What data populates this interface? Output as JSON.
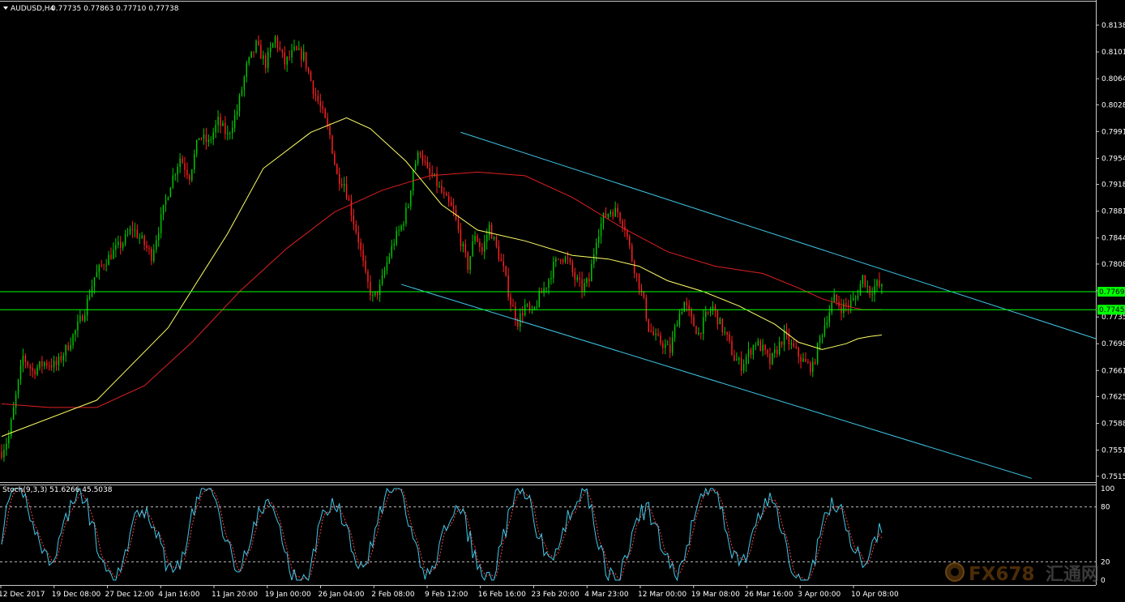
{
  "header": {
    "symbol": "AUDUSD,H4",
    "ohlc": "0.77735 0.77863 0.77710 0.77738"
  },
  "stoch_header": "Stoch(9,3,3) 51.6266 45.5038",
  "watermark": {
    "brand": "FX678",
    "cn": "汇通网"
  },
  "colors": {
    "background": "#000000",
    "bull": "#00c800",
    "bear": "#ff2020",
    "ma_fast": "#ffff66",
    "ma_slow": "#e02020",
    "channel": "#3fc8e8",
    "support": "#00ff00",
    "stoch_main": "#3fc8e8",
    "stoch_signal": "#ff4040"
  },
  "chart_data": {
    "type": "candlestick",
    "instrument": "AUDUSD",
    "timeframe": "H4",
    "ylim": [
      0.75125,
      0.8138
    ],
    "y_ticks": [
      "0.81380",
      "0.81010",
      "0.80640",
      "0.80280",
      "0.79910",
      "0.79540",
      "0.79180",
      "0.78810",
      "0.78440",
      "0.78080",
      "0.77710",
      "0.77350",
      "0.76980",
      "0.76610",
      "0.76250",
      "0.75880",
      "0.75510",
      "0.75150"
    ],
    "current_price_labels": [
      {
        "label": "0.77698",
        "value": 0.77698
      },
      {
        "label": "0.77450",
        "value": 0.7745
      }
    ],
    "x_ticks": [
      "12 Dec 2017",
      "19 Dec 08:00",
      "27 Dec 12:00",
      "4 Jan 16:00",
      "11 Jan 20:00",
      "19 Jan 00:00",
      "26 Jan 04:00",
      "2 Feb 08:00",
      "9 Feb 12:00",
      "16 Feb 16:00",
      "23 Feb 20:00",
      "4 Mar 23:00",
      "12 Mar 00:00",
      "19 Mar 08:00",
      "26 Mar 16:00",
      "3 Apr 00:00",
      "10 Apr 08:00"
    ],
    "close_path": [
      [
        0,
        0.7549
      ],
      [
        3,
        0.757
      ],
      [
        6,
        0.7625
      ],
      [
        9,
        0.768
      ],
      [
        13,
        0.766
      ],
      [
        18,
        0.7672
      ],
      [
        23,
        0.7668
      ],
      [
        27,
        0.769
      ],
      [
        31,
        0.7715
      ],
      [
        35,
        0.7745
      ],
      [
        39,
        0.779
      ],
      [
        43,
        0.781
      ],
      [
        47,
        0.7825
      ],
      [
        51,
        0.7838
      ],
      [
        55,
        0.7858
      ],
      [
        59,
        0.784
      ],
      [
        63,
        0.782
      ],
      [
        67,
        0.787
      ],
      [
        71,
        0.792
      ],
      [
        75,
        0.7955
      ],
      [
        79,
        0.793
      ],
      [
        83,
        0.7985
      ],
      [
        87,
        0.7975
      ],
      [
        91,
        0.8005
      ],
      [
        95,
        0.7985
      ],
      [
        99,
        0.802
      ],
      [
        103,
        0.808
      ],
      [
        107,
        0.811
      ],
      [
        111,
        0.8085
      ],
      [
        115,
        0.812
      ],
      [
        119,
        0.8085
      ],
      [
        123,
        0.8102
      ],
      [
        127,
        0.8095
      ],
      [
        131,
        0.805
      ],
      [
        135,
        0.8015
      ],
      [
        138,
        0.7985
      ],
      [
        141,
        0.793
      ],
      [
        144,
        0.792
      ],
      [
        147,
        0.788
      ],
      [
        150,
        0.7842
      ],
      [
        153,
        0.779
      ],
      [
        156,
        0.776
      ],
      [
        159,
        0.7775
      ],
      [
        162,
        0.781
      ],
      [
        165,
        0.784
      ],
      [
        168,
        0.786
      ],
      [
        171,
        0.789
      ],
      [
        173,
        0.794
      ],
      [
        176,
        0.7965
      ],
      [
        179,
        0.7935
      ],
      [
        182,
        0.7925
      ],
      [
        186,
        0.79
      ],
      [
        190,
        0.788
      ],
      [
        193,
        0.784
      ],
      [
        196,
        0.7805
      ],
      [
        199,
        0.785
      ],
      [
        202,
        0.7825
      ],
      [
        205,
        0.786
      ],
      [
        208,
        0.783
      ],
      [
        211,
        0.78
      ],
      [
        214,
        0.7755
      ],
      [
        217,
        0.7728
      ],
      [
        220,
        0.775
      ],
      [
        223,
        0.7738
      ],
      [
        226,
        0.7762
      ],
      [
        229,
        0.778
      ],
      [
        232,
        0.7805
      ],
      [
        235,
        0.782
      ],
      [
        238,
        0.7812
      ],
      [
        241,
        0.7788
      ],
      [
        244,
        0.7775
      ],
      [
        247,
        0.7785
      ],
      [
        250,
        0.7845
      ],
      [
        253,
        0.7872
      ],
      [
        256,
        0.7882
      ],
      [
        259,
        0.788
      ],
      [
        262,
        0.786
      ],
      [
        265,
        0.7815
      ],
      [
        268,
        0.778
      ],
      [
        270,
        0.7755
      ],
      [
        272,
        0.772
      ],
      [
        275,
        0.7705
      ],
      [
        278,
        0.7698
      ],
      [
        281,
        0.7688
      ],
      [
        284,
        0.7732
      ],
      [
        287,
        0.7755
      ],
      [
        290,
        0.773
      ],
      [
        293,
        0.7712
      ],
      [
        296,
        0.7735
      ],
      [
        299,
        0.7748
      ],
      [
        302,
        0.7725
      ],
      [
        305,
        0.7705
      ],
      [
        308,
        0.7678
      ],
      [
        311,
        0.7668
      ],
      [
        314,
        0.7685
      ],
      [
        317,
        0.77
      ],
      [
        320,
        0.769
      ],
      [
        323,
        0.7672
      ],
      [
        326,
        0.769
      ],
      [
        329,
        0.771
      ],
      [
        332,
        0.7695
      ],
      [
        335,
        0.7682
      ],
      [
        338,
        0.767
      ],
      [
        341,
        0.7665
      ],
      [
        344,
        0.7705
      ],
      [
        347,
        0.7735
      ],
      [
        350,
        0.776
      ],
      [
        353,
        0.7748
      ],
      [
        356,
        0.7752
      ],
      [
        359,
        0.776
      ],
      [
        362,
        0.779
      ],
      [
        365,
        0.777
      ],
      [
        368,
        0.778
      ],
      [
        370,
        0.7774
      ]
    ],
    "ma_fast": [
      [
        0,
        0.757
      ],
      [
        40,
        0.762
      ],
      [
        70,
        0.772
      ],
      [
        95,
        0.785
      ],
      [
        110,
        0.794
      ],
      [
        130,
        0.799
      ],
      [
        145,
        0.801
      ],
      [
        155,
        0.7995
      ],
      [
        170,
        0.795
      ],
      [
        185,
        0.789
      ],
      [
        200,
        0.7855
      ],
      [
        220,
        0.784
      ],
      [
        240,
        0.782
      ],
      [
        255,
        0.7815
      ],
      [
        268,
        0.7805
      ],
      [
        280,
        0.7785
      ],
      [
        295,
        0.777
      ],
      [
        310,
        0.775
      ],
      [
        325,
        0.7725
      ],
      [
        335,
        0.77
      ],
      [
        345,
        0.769
      ],
      [
        355,
        0.7698
      ],
      [
        360,
        0.7705
      ],
      [
        365,
        0.7708
      ],
      [
        370,
        0.771
      ]
    ],
    "ma_slow": [
      [
        0,
        0.7615
      ],
      [
        20,
        0.761
      ],
      [
        40,
        0.761
      ],
      [
        60,
        0.764
      ],
      [
        80,
        0.77
      ],
      [
        100,
        0.777
      ],
      [
        120,
        0.783
      ],
      [
        140,
        0.788
      ],
      [
        160,
        0.791
      ],
      [
        180,
        0.793
      ],
      [
        200,
        0.7935
      ],
      [
        220,
        0.793
      ],
      [
        240,
        0.79
      ],
      [
        260,
        0.786
      ],
      [
        280,
        0.7825
      ],
      [
        300,
        0.7805
      ],
      [
        320,
        0.7795
      ],
      [
        335,
        0.7775
      ],
      [
        345,
        0.776
      ],
      [
        355,
        0.775
      ],
      [
        362,
        0.7745
      ],
      [
        370,
        0.7745
      ]
    ],
    "channel_lines": [
      {
        "x1": 193,
        "y1": 0.799,
        "x2": 460,
        "y2": 0.7705
      },
      {
        "x1": 168,
        "y1": 0.778,
        "x2": 433,
        "y2": 0.7512
      }
    ],
    "support_lines": [
      0.77698,
      0.7745
    ],
    "stochastic": {
      "params": "9,3,3",
      "main_value": 51.6266,
      "signal_value": 45.5038,
      "levels": [
        20,
        80
      ],
      "y_ticks": [
        "100",
        "80",
        "20",
        "0"
      ]
    }
  }
}
